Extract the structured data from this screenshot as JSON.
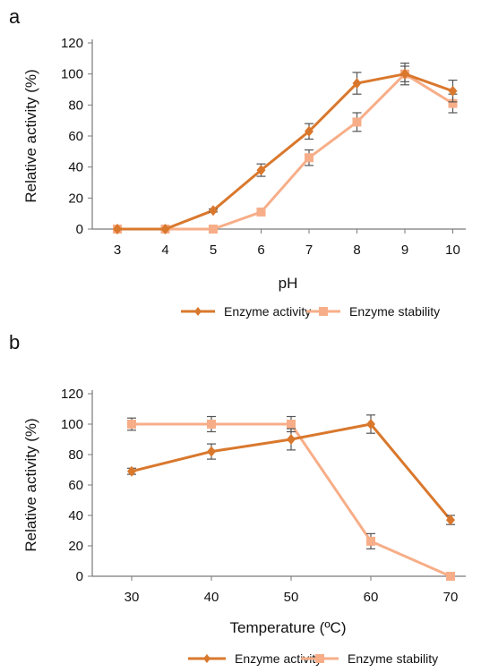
{
  "chart_data": [
    {
      "type": "line",
      "panel_label": "a",
      "xlabel": "pH",
      "ylabel": "Relative activity (%)",
      "categories": [
        "3",
        "4",
        "5",
        "6",
        "7",
        "8",
        "9",
        "10"
      ],
      "ylim": [
        0,
        120
      ],
      "yticks": [
        "0",
        "20",
        "40",
        "60",
        "80",
        "100",
        "120"
      ],
      "grid": false,
      "legend_position": "bottom",
      "series": [
        {
          "name": "Enzyme activity",
          "color": "#D9782D",
          "marker": "diamond",
          "values": [
            0,
            0,
            12,
            38,
            63,
            94,
            100,
            89
          ],
          "errors": [
            0,
            0,
            1,
            4,
            5,
            7,
            5,
            7
          ]
        },
        {
          "name": "Enzyme stability",
          "color": "#F7AE88",
          "marker": "square",
          "values": [
            0,
            0,
            0,
            11,
            46,
            69,
            100,
            81
          ],
          "errors": [
            0,
            0,
            0,
            2,
            5,
            6,
            7,
            6
          ]
        }
      ]
    },
    {
      "type": "line",
      "panel_label": "b",
      "xlabel": "Temperature (ºC)",
      "ylabel": "Relative activity (%)",
      "categories": [
        "30",
        "40",
        "50",
        "60",
        "70"
      ],
      "ylim": [
        0,
        120
      ],
      "yticks": [
        "0",
        "20",
        "40",
        "60",
        "80",
        "100",
        "120"
      ],
      "grid": false,
      "legend_position": "bottom",
      "series": [
        {
          "name": "Enzyme activity",
          "color": "#D9782D",
          "marker": "diamond",
          "values": [
            69,
            82,
            90,
            100,
            37
          ],
          "errors": [
            2,
            5,
            7,
            6,
            3
          ]
        },
        {
          "name": "Enzyme stability",
          "color": "#F7AE88",
          "marker": "square",
          "values": [
            100,
            100,
            100,
            23,
            0
          ],
          "errors": [
            4,
            5,
            5,
            5,
            0
          ]
        }
      ]
    }
  ]
}
